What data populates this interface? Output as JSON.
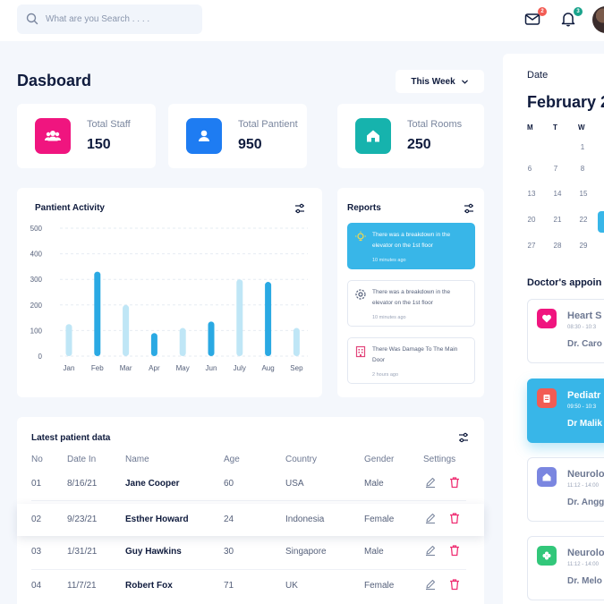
{
  "header": {
    "search_placeholder": "What are you Search . . . .",
    "mail_badge": "2",
    "bell_badge": "3",
    "colors": {
      "mail_badge": "#f25c54",
      "bell_badge": "#1aa38c"
    }
  },
  "dashboard": {
    "title": "Dasboard",
    "period": "This Week"
  },
  "stats": [
    {
      "label": "Total Staff",
      "value": "150",
      "icon": "users-icon",
      "color": "#f0157f"
    },
    {
      "label": "Total Pantient",
      "value": "950",
      "icon": "user-icon",
      "color": "#1e7cf2"
    },
    {
      "label": "Total Rooms",
      "value": "250",
      "icon": "home-icon",
      "color": "#16b3ad"
    }
  ],
  "activity": {
    "title": "Pantient Activity"
  },
  "chart_data": {
    "type": "bar",
    "title": "Pantient Activity",
    "categories": [
      "Jan",
      "Feb",
      "Mar",
      "Apr",
      "May",
      "Jun",
      "July",
      "Aug",
      "Sep"
    ],
    "ylim": [
      0,
      500
    ],
    "yticks": [
      "0",
      "100",
      "200",
      "300",
      "400",
      "500"
    ],
    "values": [
      125,
      330,
      200,
      90,
      110,
      135,
      300,
      290,
      110
    ],
    "bar_colors": [
      "#bfe6f6",
      "#2aa9e3",
      "#bfe6f6",
      "#2aa9e3",
      "#bfe6f6",
      "#2aa9e3",
      "#bfe6f6",
      "#2aa9e3",
      "#bfe6f6"
    ],
    "grid": true
  },
  "reports": {
    "title": "Reports",
    "items": [
      {
        "text": "There was a breakdown in the elevator on the 1st floor",
        "time": "10 minutes ago",
        "icon": "lightbulb-icon"
      },
      {
        "text": "There was a breakdown in the elevator on the 1st floor",
        "time": "10 minutes ago",
        "icon": "gear-icon"
      },
      {
        "text": "There Was Damage To The Main Door",
        "time": "2 hours ago",
        "icon": "building-icon"
      }
    ]
  },
  "patients": {
    "title": "Latest patient data",
    "columns": [
      "No",
      "Date In",
      "Name",
      "Age",
      "Country",
      "Gender",
      "Settings"
    ],
    "rows": [
      {
        "no": "01",
        "date": "8/16/21",
        "name": "Jane Cooper",
        "age": "60",
        "country": "USA",
        "gender": "Male"
      },
      {
        "no": "02",
        "date": "9/23/21",
        "name": "Esther Howard",
        "age": "24",
        "country": "Indonesia",
        "gender": "Female"
      },
      {
        "no": "03",
        "date": "1/31/21",
        "name": "Guy Hawkins",
        "age": "30",
        "country": "Singapore",
        "gender": "Male"
      },
      {
        "no": "04",
        "date": "11/7/21",
        "name": "Robert Fox",
        "age": "71",
        "country": "UK",
        "gender": "Female"
      }
    ]
  },
  "calendar": {
    "label": "Date",
    "month": "February 2",
    "weekdays": [
      "M",
      "T",
      "W"
    ],
    "rows": [
      [
        "",
        "",
        "1"
      ],
      [
        "6",
        "7",
        "8"
      ],
      [
        "13",
        "14",
        "15"
      ],
      [
        "20",
        "21",
        "22"
      ],
      [
        "27",
        "28",
        "29"
      ]
    ],
    "accent": "#38b6e8"
  },
  "appointments": {
    "title": "Doctor's appoin",
    "items": [
      {
        "name": "Heart S",
        "time": "08:30 - 10:3",
        "doctor": "Dr. Caro",
        "icon": "heart-icon",
        "color": "#f0157f"
      },
      {
        "name": "Pediatr",
        "time": "09:50 - 10:3",
        "doctor": "Dr Malik",
        "icon": "clipboard-icon",
        "color": "#f25c54"
      },
      {
        "name": "Neurolo",
        "time": "11:12 - 14:00",
        "doctor": "Dr. Angg",
        "icon": "home-icon",
        "color": "#7a86e0"
      },
      {
        "name": "Neurolo",
        "time": "11:12 - 14:00",
        "doctor": "Dr. Melo",
        "icon": "flower-icon",
        "color": "#32c77a"
      }
    ]
  }
}
